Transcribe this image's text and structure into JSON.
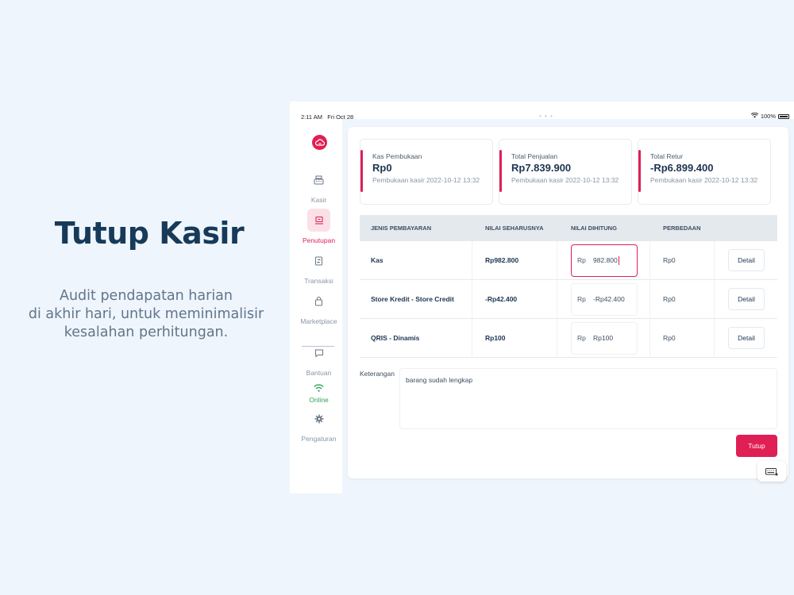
{
  "promo": {
    "title": "Tutup Kasir",
    "desc_lines": [
      "Audit pendapatan harian",
      "di akhir hari, untuk meminimalisir",
      "kesalahan perhitungan."
    ]
  },
  "status_bar": {
    "time": "2:11 AM",
    "date": "Fri Oct 28",
    "dots": "• • •",
    "battery": "100%"
  },
  "sidebar": {
    "items": [
      {
        "label": "Kasir",
        "icon": "register-icon"
      },
      {
        "label": "Penutupan",
        "icon": "closing-icon",
        "active": true
      },
      {
        "label": "Transaksi",
        "icon": "receipt-icon"
      },
      {
        "label": "Marketplace",
        "icon": "bag-icon"
      },
      {
        "label": "Bantuan",
        "icon": "chat-icon"
      },
      {
        "label": "Online",
        "icon": "wifi-icon"
      },
      {
        "label": "Pengaturan",
        "icon": "gear-icon"
      }
    ]
  },
  "summary_cards": [
    {
      "label": "Kas Pembukaan",
      "value": "Rp0",
      "sub": "Pembukaan kasir 2022-10-12 13:32"
    },
    {
      "label": "Total Penjualan",
      "value": "Rp7.839.900",
      "sub": "Pembukaan kasir 2022-10-12 13:32"
    },
    {
      "label": "Total Retur",
      "value": "-Rp6.899.400",
      "sub": "Pembukaan kasir 2022-10-12 13:32"
    }
  ],
  "table": {
    "headers": [
      "JENIS PEMBAYARAN",
      "NILAI SEHARUSNYA",
      "NILAI DIHITUNG",
      "PERBEDAAN"
    ],
    "rows": [
      {
        "jenis": "Kas",
        "seharusnya": "Rp982.800",
        "prefix": "Rp",
        "dihitung": "982.800",
        "perbedaan": "Rp0",
        "action": "Detail"
      },
      {
        "jenis": "Store Kredit - Store Credit",
        "seharusnya": "-Rp42.400",
        "prefix": "Rp",
        "dihitung": "-Rp42.400",
        "perbedaan": "Rp0",
        "action": "Detail"
      },
      {
        "jenis": "QRIS - Dinamis",
        "seharusnya": "Rp100",
        "prefix": "Rp",
        "dihitung": "Rp100",
        "perbedaan": "Rp0",
        "action": "Detail"
      }
    ]
  },
  "keterangan": {
    "label": "Keterangan",
    "value": "barang sudah lengkap"
  },
  "actions": {
    "submit": "Tutup"
  },
  "colors": {
    "accent": "#e01f55",
    "online": "#2fa25a",
    "title": "#173a59"
  }
}
